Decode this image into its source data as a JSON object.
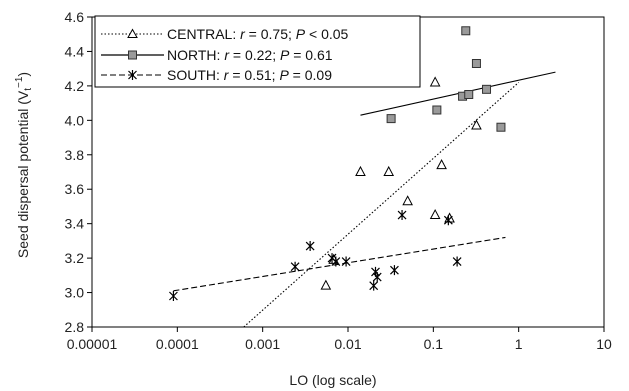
{
  "chart_data": {
    "type": "scatter",
    "xlabel": "LO (log scale)",
    "ylabel_main": "Seed dispersal potential (V",
    "ylabel_sub": "t",
    "ylabel_sup": "−1",
    "ylabel_close": ")",
    "x_scale": "log",
    "xlim": [
      1e-05,
      10
    ],
    "ylim": [
      2.8,
      4.6
    ],
    "x_ticks": [
      1e-05,
      0.0001,
      0.001,
      0.01,
      0.1,
      1,
      10
    ],
    "x_tick_labels": [
      "0.00001",
      "0.0001",
      "0.001",
      "0.01",
      "0.1",
      "1",
      "10"
    ],
    "y_ticks": [
      2.8,
      3.0,
      3.2,
      3.4,
      3.6,
      3.8,
      4.0,
      4.2,
      4.4,
      4.6
    ],
    "y_tick_labels": [
      "2.8",
      "3.0",
      "3.2",
      "3.4",
      "3.6",
      "3.8",
      "4.0",
      "4.2",
      "4.4",
      "4.6"
    ],
    "grid": false,
    "legend_position": "top-left",
    "series": [
      {
        "name": "CENTRAL",
        "legend_label": "CENTRAL: ",
        "stat_r": "r",
        "stat_r_val": " = 0.75; ",
        "stat_p": "P",
        "stat_p_val": " < 0.05",
        "marker": "triangle",
        "line_style": "dotted",
        "marker_fill": "#ffffff",
        "line": {
          "x": [
            0.0006,
            1.0
          ],
          "y": [
            2.8,
            4.22
          ]
        },
        "points": [
          {
            "x": 0.0055,
            "y": 3.04
          },
          {
            "x": 0.0068,
            "y": 3.19
          },
          {
            "x": 0.014,
            "y": 3.7
          },
          {
            "x": 0.03,
            "y": 3.7
          },
          {
            "x": 0.05,
            "y": 3.53
          },
          {
            "x": 0.105,
            "y": 3.45
          },
          {
            "x": 0.125,
            "y": 3.74
          },
          {
            "x": 0.155,
            "y": 3.43
          },
          {
            "x": 0.105,
            "y": 4.22
          },
          {
            "x": 0.32,
            "y": 3.97
          }
        ]
      },
      {
        "name": "NORTH",
        "legend_label": "NORTH: ",
        "stat_r": "r",
        "stat_r_val": " = 0.22; ",
        "stat_p": "P",
        "stat_p_val": " = 0.61",
        "marker": "square",
        "line_style": "solid",
        "marker_fill": "#9a9a9a",
        "line": {
          "x": [
            0.014,
            2.7
          ],
          "y": [
            4.03,
            4.28
          ]
        },
        "points": [
          {
            "x": 0.032,
            "y": 4.01
          },
          {
            "x": 0.11,
            "y": 4.06
          },
          {
            "x": 0.22,
            "y": 4.14
          },
          {
            "x": 0.26,
            "y": 4.15
          },
          {
            "x": 0.24,
            "y": 4.52
          },
          {
            "x": 0.32,
            "y": 4.33
          },
          {
            "x": 0.42,
            "y": 4.18
          },
          {
            "x": 0.62,
            "y": 3.96
          }
        ]
      },
      {
        "name": "SOUTH",
        "legend_label": "SOUTH: ",
        "stat_r": "r",
        "stat_r_val": " = 0.51; ",
        "stat_p": "P",
        "stat_p_val": " = 0.09",
        "marker": "asterisk",
        "line_style": "dashed",
        "marker_fill": "none",
        "line": {
          "x": [
            9e-05,
            0.7
          ],
          "y": [
            3.01,
            3.32
          ]
        },
        "points": [
          {
            "x": 9e-05,
            "y": 2.98
          },
          {
            "x": 0.0024,
            "y": 3.15
          },
          {
            "x": 0.0036,
            "y": 3.27
          },
          {
            "x": 0.0065,
            "y": 3.2
          },
          {
            "x": 0.0072,
            "y": 3.18
          },
          {
            "x": 0.0095,
            "y": 3.18
          },
          {
            "x": 0.02,
            "y": 3.04
          },
          {
            "x": 0.021,
            "y": 3.12
          },
          {
            "x": 0.022,
            "y": 3.09
          },
          {
            "x": 0.035,
            "y": 3.13
          },
          {
            "x": 0.043,
            "y": 3.45
          },
          {
            "x": 0.15,
            "y": 3.42
          },
          {
            "x": 0.19,
            "y": 3.18
          }
        ]
      }
    ]
  }
}
